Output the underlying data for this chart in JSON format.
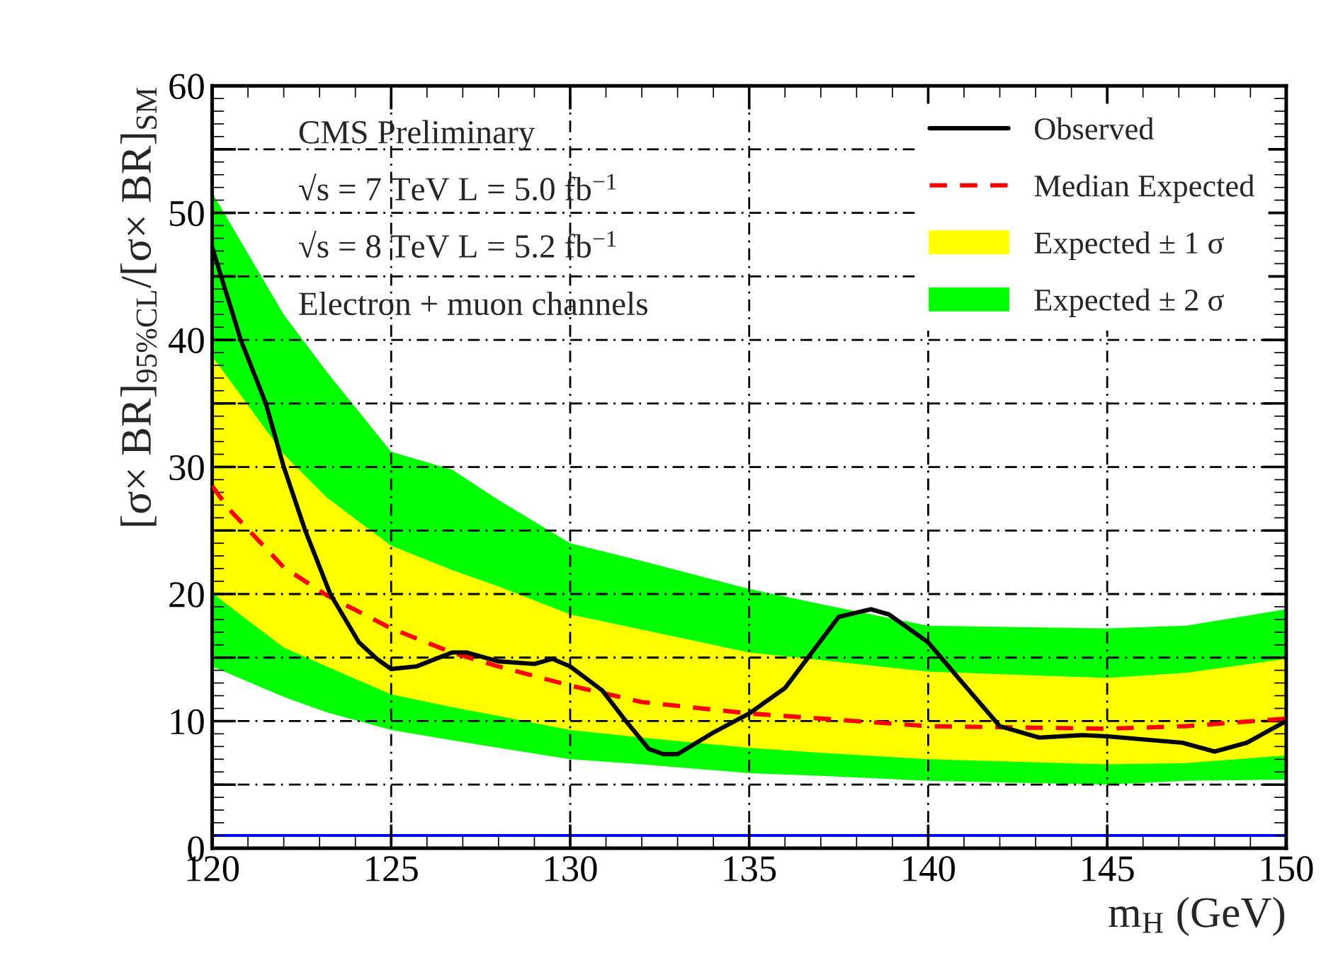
{
  "chart_data": {
    "type": "line",
    "xlabel": "m$_{H}$ (GeV)",
    "ylabel": "[σ× BR]$_{95%CL}$/[σ× BR]$_{SM}$",
    "annotations": [
      "CMS Preliminary",
      "√s = 7 TeV L = 5.0 fb$^{−1}$",
      "√s = 8 TeV L = 5.2 fb$^{−1}$",
      "Electron + muon channels"
    ],
    "series": [
      {
        "name": "Observed",
        "line_style": "solid",
        "color": "#000000",
        "x": [
          120,
          120.8,
          121.5,
          122,
          122.6,
          123.3,
          124.1,
          124.6,
          125,
          125.7,
          126.7,
          127.1,
          128,
          129,
          129.5,
          130,
          130.9,
          131.5,
          132.2,
          132.6,
          133,
          134,
          135,
          136,
          137.5,
          138.4,
          138.9,
          140,
          140.9,
          142,
          143.1,
          144.3,
          145,
          147.1,
          148,
          148.9,
          150
        ],
        "values": [
          47.3,
          40,
          35,
          30,
          25,
          20,
          16.2,
          14.9,
          14.1,
          14.3,
          15.4,
          15.4,
          14.7,
          14.5,
          14.9,
          14.3,
          12.4,
          10.2,
          7.8,
          7.4,
          7.4,
          9.1,
          10.6,
          12.6,
          18.2,
          18.8,
          18.4,
          16.2,
          13.2,
          9.6,
          8.7,
          8.9,
          8.8,
          8.3,
          7.6,
          8.3,
          10
        ]
      },
      {
        "name": "Median Expected",
        "line_style": "dashed",
        "color": "#ff0000",
        "x": [
          120,
          120.5,
          122,
          123.2,
          125,
          126.7,
          128,
          130,
          132,
          135,
          137,
          140,
          145,
          147.2,
          150
        ],
        "values": [
          28.5,
          26.6,
          22.1,
          19.9,
          17.3,
          15.4,
          14.3,
          12.8,
          11.5,
          10.6,
          10.2,
          9.6,
          9.4,
          9.6,
          10.2
        ]
      },
      {
        "name": "Expected ± 1 σ",
        "color": "#ffff00",
        "x": [
          120,
          120.5,
          122,
          123.2,
          125,
          126.7,
          128,
          130,
          132,
          135,
          137,
          140,
          145,
          147.2,
          150
        ],
        "values": [
          null,
          null,
          null,
          null,
          null,
          null,
          null,
          null,
          null,
          null,
          null,
          null,
          null,
          null,
          null
        ],
        "lower": [
          20.1,
          19.0,
          15.8,
          14.3,
          12.1,
          11.1,
          10.4,
          9.3,
          8.7,
          7.9,
          7.5,
          7.0,
          6.6,
          6.7,
          7.3
        ],
        "upper": [
          38.7,
          36.8,
          31,
          27.6,
          23.8,
          21.9,
          20.6,
          18.4,
          17.2,
          15.4,
          14.8,
          13.9,
          13.4,
          13.8,
          14.9
        ]
      },
      {
        "name": "Expected ± 2 σ",
        "color": "#00ff00",
        "x": [
          120,
          120.5,
          122,
          123.2,
          125,
          126.7,
          128,
          130,
          132,
          135,
          137,
          140,
          145,
          147.2,
          150
        ],
        "values": [
          null,
          null,
          null,
          null,
          null,
          null,
          null,
          null,
          null,
          null,
          null,
          null,
          null,
          null,
          null
        ],
        "lower": [
          14.3,
          13.7,
          11.9,
          10.7,
          9.3,
          8.5,
          7.9,
          7.0,
          6.6,
          5.9,
          5.7,
          5.3,
          5.0,
          5.3,
          5.4
        ],
        "upper": [
          51.6,
          49.2,
          42,
          37.5,
          31.2,
          29.8,
          27.4,
          24,
          22.6,
          20.4,
          19.2,
          17.5,
          17.3,
          17.5,
          18.8
        ]
      }
    ],
    "xlim": [
      120,
      150
    ],
    "xticks": [
      120,
      125,
      130,
      135,
      140,
      145,
      150
    ],
    "ylim": [
      0,
      60
    ],
    "yticks": [
      0,
      {
        "value": 5,
        "label": null
      },
      10,
      {
        "value": 15,
        "label": null
      },
      20,
      {
        "value": 25,
        "label": null
      },
      30,
      {
        "value": 35,
        "label": null
      },
      40,
      {
        "value": 45,
        "label": null
      },
      50,
      {
        "value": 55,
        "label": null
      },
      60
    ],
    "ref_lines": [
      {
        "axis": "y",
        "value": 1,
        "color": "#0000ff"
      }
    ],
    "grid": true,
    "legend": "top right",
    "marker": "none"
  }
}
